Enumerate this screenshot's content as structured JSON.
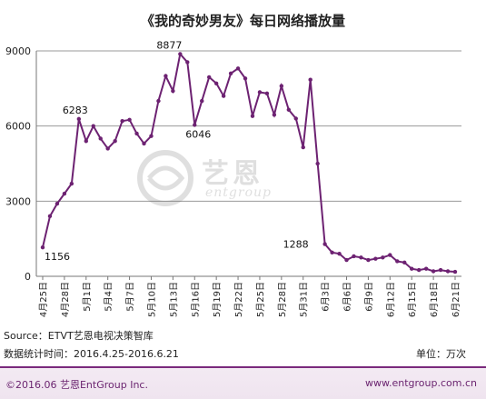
{
  "chart_data": {
    "type": "line",
    "title": "《我的奇妙男友》每日网络播放量",
    "xlabel": "",
    "ylabel": "",
    "ylim": [
      0,
      9000
    ],
    "yticks": [
      0,
      3000,
      6000,
      9000
    ],
    "grid": true,
    "legend": "none",
    "x_tick_labels": [
      "4月25日",
      "4月28日",
      "5月1日",
      "5月4日",
      "5月7日",
      "5月10日",
      "5月13日",
      "5月16日",
      "5月19日",
      "5月22日",
      "5月25日",
      "5月28日",
      "5月31日",
      "6月3日",
      "6月6日",
      "6月9日",
      "6月12日",
      "6月15日",
      "6月18日",
      "6月21日"
    ],
    "x": [
      "4月25日",
      "4月26日",
      "4月27日",
      "4月28日",
      "4月29日",
      "4月30日",
      "5月1日",
      "5月2日",
      "5月3日",
      "5月4日",
      "5月5日",
      "5月6日",
      "5月7日",
      "5月8日",
      "5月9日",
      "5月10日",
      "5月11日",
      "5月12日",
      "5月13日",
      "5月14日",
      "5月15日",
      "5月16日",
      "5月17日",
      "5月18日",
      "5月19日",
      "5月20日",
      "5月21日",
      "5月22日",
      "5月23日",
      "5月24日",
      "5月25日",
      "5月26日",
      "5月27日",
      "5月28日",
      "5月29日",
      "5月30日",
      "5月31日",
      "6月1日",
      "6月2日",
      "6月3日",
      "6月4日",
      "6月5日",
      "6月6日",
      "6月7日",
      "6月8日",
      "6月9日",
      "6月10日",
      "6月11日",
      "6月12日",
      "6月13日",
      "6月14日",
      "6月15日",
      "6月16日",
      "6月17日",
      "6月18日",
      "6月19日",
      "6月20日",
      "6月21日"
    ],
    "series": [
      {
        "values": [
          1156,
          2400,
          2900,
          3300,
          3700,
          6283,
          5400,
          6000,
          5500,
          5100,
          5400,
          6200,
          6250,
          5700,
          5300,
          5600,
          7000,
          8000,
          7400,
          8877,
          8550,
          6046,
          7000,
          7950,
          7700,
          7200,
          8100,
          8300,
          7900,
          6400,
          7350,
          7300,
          6450,
          7600,
          6650,
          6300,
          5150,
          7850,
          4500,
          1288,
          950,
          900,
          650,
          800,
          750,
          650,
          700,
          750,
          850,
          600,
          550,
          300,
          250,
          300,
          200,
          250,
          200,
          180
        ]
      }
    ],
    "annotations": [
      {
        "x": "4月25日",
        "label": "1156"
      },
      {
        "x": "4月30日",
        "label": "6283"
      },
      {
        "x": "5月14日",
        "label": "8877"
      },
      {
        "x": "5月16日",
        "label": "6046"
      },
      {
        "x": "6月3日",
        "label": "1288"
      }
    ],
    "line_color": "#6d2272",
    "grid_color": "#9a9a9a",
    "axis_color": "#777777"
  },
  "footer": {
    "source": "Source：ETVT艺恩电视决策智库",
    "period": "数据统计时间：2016.4.25-2016.6.21",
    "unit": "单位：万次",
    "copyright": "©2016.06 艺恩EntGroup Inc.",
    "website": "www.entgroup.com.cn"
  },
  "watermark": {
    "text": "艺恩",
    "subtext": "entgroup"
  }
}
